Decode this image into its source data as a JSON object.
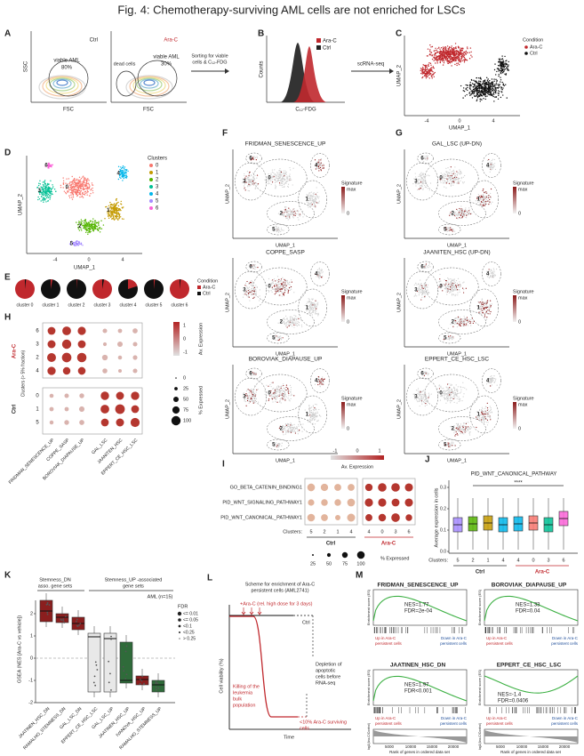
{
  "title": "Fig. 4: Chemotherapy-surviving AML cells are not enriched for LSCs",
  "a": {
    "letter": "A",
    "ctrl": "Ctrl",
    "arac": "Ara-C",
    "ssc": "SSC",
    "fsc": "FSC",
    "gate1": "viable AML",
    "pct1": "80%",
    "dead": "dead cells",
    "gate2": "viable AML",
    "pct2": "30%",
    "arrow": [
      "Sorting for viable",
      "cells & C₁₂-FDG"
    ]
  },
  "b": {
    "letter": "B",
    "arac": "Ara-C",
    "ctrl": "Ctrl",
    "ylabel": "Counts",
    "xlabel": "C₁₂-FDG",
    "arrow": "scRNA-seq"
  },
  "c": {
    "letter": "C",
    "legend_title": "Condition",
    "legend": [
      "Ara-C",
      "Ctrl"
    ],
    "xlabel": "UMAP_1",
    "ylabel": "UMAP_2",
    "xticks": [
      "-4",
      "0",
      "4"
    ]
  },
  "d": {
    "letter": "D",
    "legend_title": "Clusters",
    "clusters": [
      "0",
      "1",
      "2",
      "3",
      "4",
      "5",
      "6"
    ],
    "xlabel": "UMAP_1",
    "ylabel": "UMAP_2",
    "xticks": [
      "-4",
      "0",
      "4"
    ]
  },
  "e": {
    "letter": "E",
    "pies": [
      "cluster 0",
      "cluster 1",
      "cluster 2",
      "cluster 3",
      "cluster 4",
      "cluster 5",
      "cluster 6"
    ],
    "legend_title": "Condition",
    "legend": [
      "Ara-C",
      "Ctrl"
    ]
  },
  "f": {
    "letter": "F",
    "plots": [
      "FRIDMAN_SENESCENCE_UP",
      "COPPE_SASP",
      "BOROVIAK_DIAPAUSE_UP"
    ]
  },
  "g": {
    "letter": "G",
    "plots": [
      "GAL_LSC (UP-DN)",
      "JAANITEN_HSC (UP-DN)",
      "EPPERT_CE_HSC_LSC"
    ]
  },
  "umap": {
    "xlabel": "UMAP_1",
    "ylabel": "UMAP_2",
    "sig": "Signature",
    "max": "max",
    "zero": "0"
  },
  "h": {
    "letter": "H",
    "group1": "Ara-C",
    "group2": "Ctrl",
    "ylabel": "Clusters (> 5% fraction)",
    "rows1": [
      "6",
      "3",
      "2",
      "4"
    ],
    "rows2": [
      "0",
      "1",
      "5"
    ],
    "genesets": [
      "FRIDMAN_SENESCENCE_UP",
      "COPPE_SASP",
      "BOROVIAK_DIAPAUSE_UP",
      "GAL_LSC",
      "JAANITEN_HSC",
      "EPPERT_CE_HSC_LSC"
    ],
    "expr_title": "Av. Expression",
    "expr_ticks": [
      "1",
      "0",
      "-1"
    ],
    "pct_title": "% Expressed",
    "pct_ticks": [
      "0",
      "25",
      "50",
      "75",
      "100"
    ]
  },
  "i": {
    "letter": "I",
    "rows": [
      "GO_BETA_CATENIN_BINDING1",
      "PID_WNT_SIGNALING_PATHWAY1",
      "PID_WNT_CANONICAL_PATHWAY1"
    ],
    "clusters_label": "Clusters:",
    "ctrl_clusters": [
      "5",
      "2",
      "1",
      "4"
    ],
    "arac_clusters": [
      "4",
      "0",
      "3",
      "6"
    ],
    "ctrl": "Ctrl",
    "arac": "Ara-C",
    "expr_ticks": [
      "-1",
      "0",
      "1"
    ],
    "expr_title": "Av. Expression",
    "pct_ticks": [
      "25",
      "50",
      "75",
      "100"
    ],
    "pct_title": "% Expressed"
  },
  "j": {
    "letter": "J",
    "title": "PID_WNT_CANONICAL_PATHWAY",
    "ylabel": "Average expression in cells",
    "sig": "****",
    "clusters_label": "Clusters:",
    "clusters": [
      "5",
      "2",
      "1",
      "4",
      "4",
      "0",
      "3",
      "6"
    ],
    "ctrl": "Ctrl",
    "arac": "Ara-C",
    "yticks": [
      "0.3",
      "0.2",
      "0.1",
      "0.0"
    ]
  },
  "k": {
    "letter": "K",
    "group1": [
      "Stemness_DN",
      "asso. gene sets"
    ],
    "group2": [
      "Stemness_UP -associated",
      "gene sets"
    ],
    "cohort": "AML (n=15)",
    "ylabel": "GSEA (NES [Ara-C vs vehicle])",
    "yticks": [
      "2",
      "1",
      "0",
      "-1",
      "-2"
    ],
    "fdr_title": "FDR",
    "fdr": [
      "<= 0.01",
      "<= 0.05",
      "<0.1",
      "<0.25",
      "> 0.25"
    ],
    "sets": [
      "JAATINEN_HSC_DN",
      "RAMALHO_STEMNESS_DN",
      "GAL_LSC_DN",
      "EPPERT_CE_HSC_LSC",
      "GAL_LSC_UP",
      "JAATINEN_HSC_UP",
      "IVANOVA_HSC_UP",
      "RAMALHO_STEMNESS_UP"
    ]
  },
  "l": {
    "letter": "L",
    "title": [
      "Scheme for enrichment of Ara-C",
      "persistent cells (AML2741)"
    ],
    "dose": "+Ara-C (rel. high dose for 3 days)",
    "ctrl": "Ctrl",
    "depletion": [
      "Depletion of",
      "apoptotic",
      "cells before",
      "RNA-seq"
    ],
    "killing": [
      "Killing of the",
      "leukemia",
      "bulk",
      "population"
    ],
    "surviving": [
      "<10% Ara-C surviving",
      "cells"
    ],
    "ylabel": "Cell viability (%)",
    "xlabel": "Time"
  },
  "m": {
    "letter": "M",
    "plots": [
      {
        "title": "FRIDMAN_SENESCENCE_UP",
        "nes": "NES=1.77",
        "fdr": "FDR=2e-04"
      },
      {
        "title": "BOROVIAK_DIAPAUSE_UP",
        "nes": "NES=1.33",
        "fdr": "FDR=0.04"
      },
      {
        "title": "JAATINEN_HSC_DN",
        "nes": "NES=1.97",
        "fdr": "FDR<0.001"
      },
      {
        "title": "EPPERT_CE_HSC_LSC",
        "nes": "NES=-1.4",
        "fdr": "FDR=0.0406"
      }
    ],
    "es_label": "Enrichment score (ES)",
    "up": [
      "Up in Ara-C",
      "persistent cells"
    ],
    "down": [
      "Down in Ara-C",
      "persistent cells"
    ],
    "rank_ylabel": "log2(Ara-C/Control)",
    "xlabel": "Rank of genes in ordered data set",
    "xticks": [
      "5000",
      "10000",
      "15000",
      "20000"
    ]
  }
}
